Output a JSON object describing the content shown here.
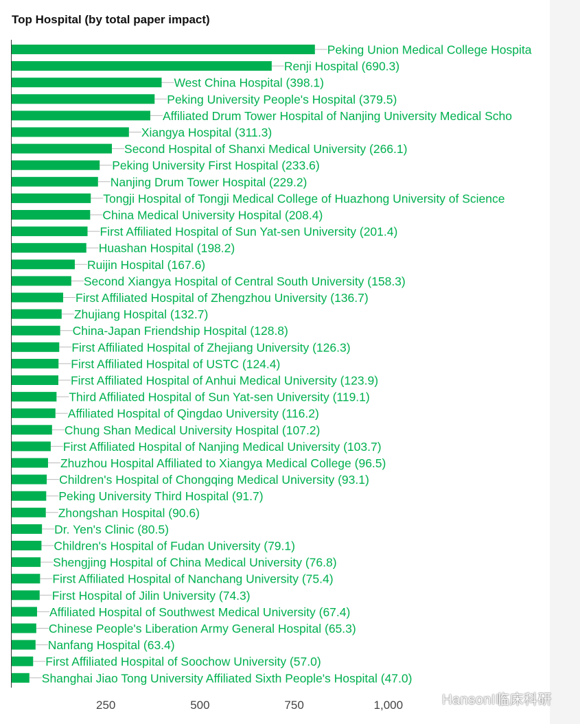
{
  "chart_data": {
    "type": "bar",
    "orientation": "horizontal",
    "title": "Top Hospital (by total paper impact)",
    "xlabel": "",
    "ylabel": "",
    "xlim": [
      0,
      1150
    ],
    "xticks": [
      250,
      500,
      750,
      1000
    ],
    "xtick_labels": [
      "250",
      "500",
      "750",
      "1,000"
    ],
    "grid": false,
    "bar_color": "#00b050",
    "categories": [
      "Peking Union Medical College Hospital",
      "Renji Hospital",
      "West China Hospital",
      "Peking University People's Hospital",
      "Affiliated Drum Tower Hospital of Nanjing University Medical School",
      "Xiangya Hospital",
      "Second Hospital of Shanxi Medical University",
      "Peking University First Hospital",
      "Nanjing Drum Tower Hospital",
      "Tongji Hospital of Tongji Medical College of Huazhong University of Science and Technology",
      "China Medical University Hospital",
      "First Affiliated Hospital of Sun Yat-sen University",
      "Huashan Hospital",
      "Ruijin Hospital",
      "Second Xiangya Hospital of Central South University",
      "First Affiliated Hospital of Zhengzhou University",
      "Zhujiang Hospital",
      "China-Japan Friendship Hospital",
      "First Affiliated Hospital of Zhejiang University",
      "First Affiliated Hospital of USTC",
      "First Affiliated Hospital of Anhui Medical University",
      "Third Affiliated Hospital of Sun Yat-sen University",
      "Affiliated Hospital of Qingdao University",
      "Chung Shan Medical University Hospital",
      "First Affiliated Hospital of Nanjing Medical University",
      "Zhuzhou Hospital Affiliated to Xiangya Medical College",
      "Children's Hospital of Chongqing Medical University",
      "Peking University Third Hospital",
      "Zhongshan Hospital",
      "Dr. Yen's Clinic",
      "Children's Hospital of Fudan University",
      "Shengjing Hospital of China Medical University",
      "First Affiliated Hospital of Nanchang University",
      "First Hospital of Jilin University",
      "Affiliated Hospital of Southwest Medical University",
      "Chinese People's Liberation Army General Hospital",
      "Nanfang Hospital",
      "First Affiliated Hospital of Soochow University",
      "Shanghai Jiao Tong University Affiliated Sixth People's Hospital"
    ],
    "values": [
      805.0,
      690.3,
      398.1,
      379.5,
      368.0,
      311.3,
      266.1,
      233.6,
      229.2,
      210.0,
      208.4,
      201.4,
      198.2,
      167.6,
      158.3,
      136.7,
      132.7,
      128.8,
      126.3,
      124.4,
      123.9,
      119.1,
      116.2,
      107.2,
      103.7,
      96.5,
      93.1,
      91.7,
      90.6,
      80.5,
      79.1,
      76.8,
      75.4,
      74.3,
      67.4,
      65.3,
      63.4,
      57.0,
      47.0
    ],
    "data_labels": [
      "Peking Union Medical College Hospita",
      "Renji Hospital (690.3)",
      "West China Hospital (398.1)",
      "Peking University People's Hospital (379.5)",
      "Affiliated Drum Tower Hospital of Nanjing University Medical Scho",
      "Xiangya Hospital (311.3)",
      "Second Hospital of Shanxi Medical University (266.1)",
      "Peking University First Hospital (233.6)",
      "Nanjing Drum Tower Hospital (229.2)",
      "Tongji Hospital of Tongji Medical College of Huazhong University of Science",
      "China Medical University Hospital (208.4)",
      "First Affiliated Hospital of Sun Yat-sen University (201.4)",
      "Huashan Hospital (198.2)",
      "Ruijin Hospital (167.6)",
      "Second Xiangya Hospital of Central South University (158.3)",
      "First Affiliated Hospital of Zhengzhou University (136.7)",
      "Zhujiang Hospital (132.7)",
      "China-Japan Friendship Hospital (128.8)",
      "First Affiliated Hospital of Zhejiang University (126.3)",
      "First Affiliated Hospital of USTC (124.4)",
      "First Affiliated Hospital of Anhui Medical University (123.9)",
      "Third Affiliated Hospital of Sun Yat-sen University (119.1)",
      "Affiliated Hospital of Qingdao University (116.2)",
      "Chung Shan Medical University Hospital (107.2)",
      "First Affiliated Hospital of Nanjing Medical University (103.7)",
      "Zhuzhou Hospital Affiliated to Xiangya Medical College (96.5)",
      "Children's Hospital of Chongqing Medical University (93.1)",
      "Peking University Third Hospital (91.7)",
      "Zhongshan Hospital (90.6)",
      "Dr. Yen's Clinic (80.5)",
      "Children's Hospital of Fudan University (79.1)",
      "Shengjing Hospital of China Medical University (76.8)",
      "First Affiliated Hospital of Nanchang University (75.4)",
      "First Hospital of Jilin University (74.3)",
      "Affiliated Hospital of Southwest Medical University (67.4)",
      "Chinese People's Liberation Army General Hospital (65.3)",
      "Nanfang Hospital (63.4)",
      "First Affiliated Hospital of Soochow University (57.0)",
      "Shanghai Jiao Tong University Affiliated Sixth People's Hospital (47.0)"
    ]
  },
  "watermark": {
    "icon": "wechat-icon",
    "text": "HansonI临床科研"
  }
}
